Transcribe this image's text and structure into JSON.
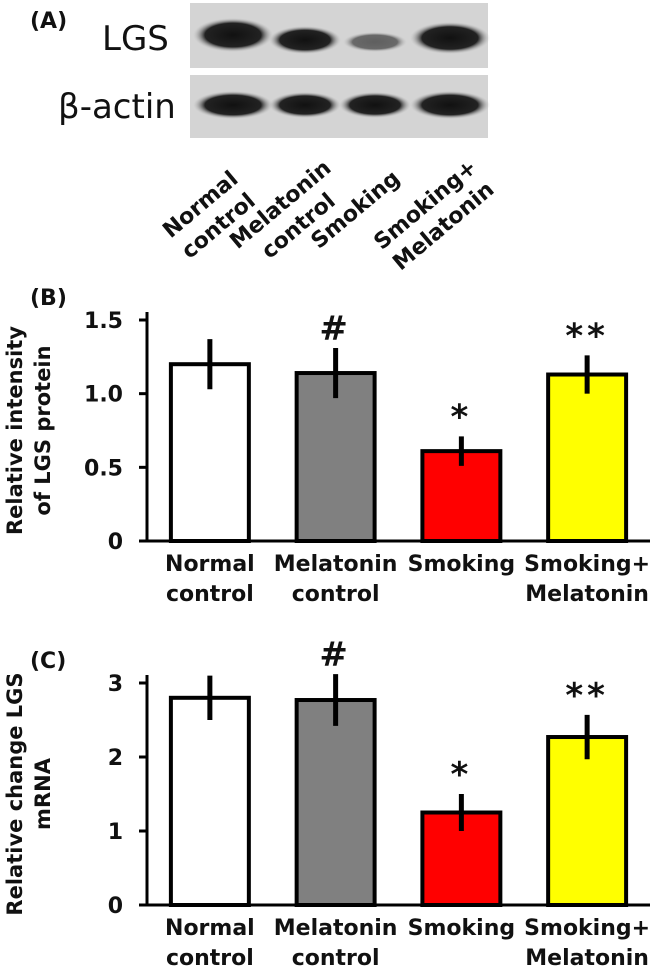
{
  "panel_a": {
    "label": "(A)",
    "rows": [
      "LGS",
      "β-actin"
    ],
    "lanes": [
      [
        "Normal",
        "control"
      ],
      [
        "Melatonin",
        "control"
      ],
      [
        "Smoking"
      ],
      [
        "Smoking+",
        "Melatonin"
      ]
    ]
  },
  "chart_data": [
    {
      "type": "bar",
      "panel_label": "(B)",
      "y_label": [
        "Relative intensity",
        "of LGS protein"
      ],
      "categories": [
        [
          "Normal",
          "control"
        ],
        [
          "Melatonin",
          "control"
        ],
        [
          "Smoking"
        ],
        [
          "Smoking+",
          "Melatonin"
        ]
      ],
      "values": [
        1.2,
        1.14,
        0.61,
        1.13
      ],
      "errors": [
        0.17,
        0.17,
        0.1,
        0.13
      ],
      "colors": [
        "#ffffff",
        "#808080",
        "#ff0000",
        "#ffff00"
      ],
      "markers": [
        null,
        "#",
        "*",
        "**"
      ],
      "ylim": [
        0,
        1.5
      ],
      "yticks": [
        0,
        {
          "value": 0.5,
          "label": "0.5"
        },
        {
          "value": 1,
          "label": "1.0"
        },
        {
          "value": 1.5,
          "label": "1.5"
        }
      ]
    },
    {
      "type": "bar",
      "panel_label": "(C)",
      "y_label": [
        "Relative change LGS",
        "mRNA"
      ],
      "categories": [
        [
          "Normal",
          "control"
        ],
        [
          "Melatonin",
          "control"
        ],
        [
          "Smoking"
        ],
        [
          "Smoking+",
          "Melatonin"
        ]
      ],
      "values": [
        2.8,
        2.77,
        1.25,
        2.27
      ],
      "errors": [
        0.3,
        0.35,
        0.25,
        0.3
      ],
      "colors": [
        "#ffffff",
        "#808080",
        "#ff0000",
        "#ffff00"
      ],
      "markers": [
        null,
        "#",
        "*",
        "**"
      ],
      "ylim": [
        0,
        3
      ],
      "yticks": [
        0,
        1,
        2,
        3
      ]
    }
  ]
}
